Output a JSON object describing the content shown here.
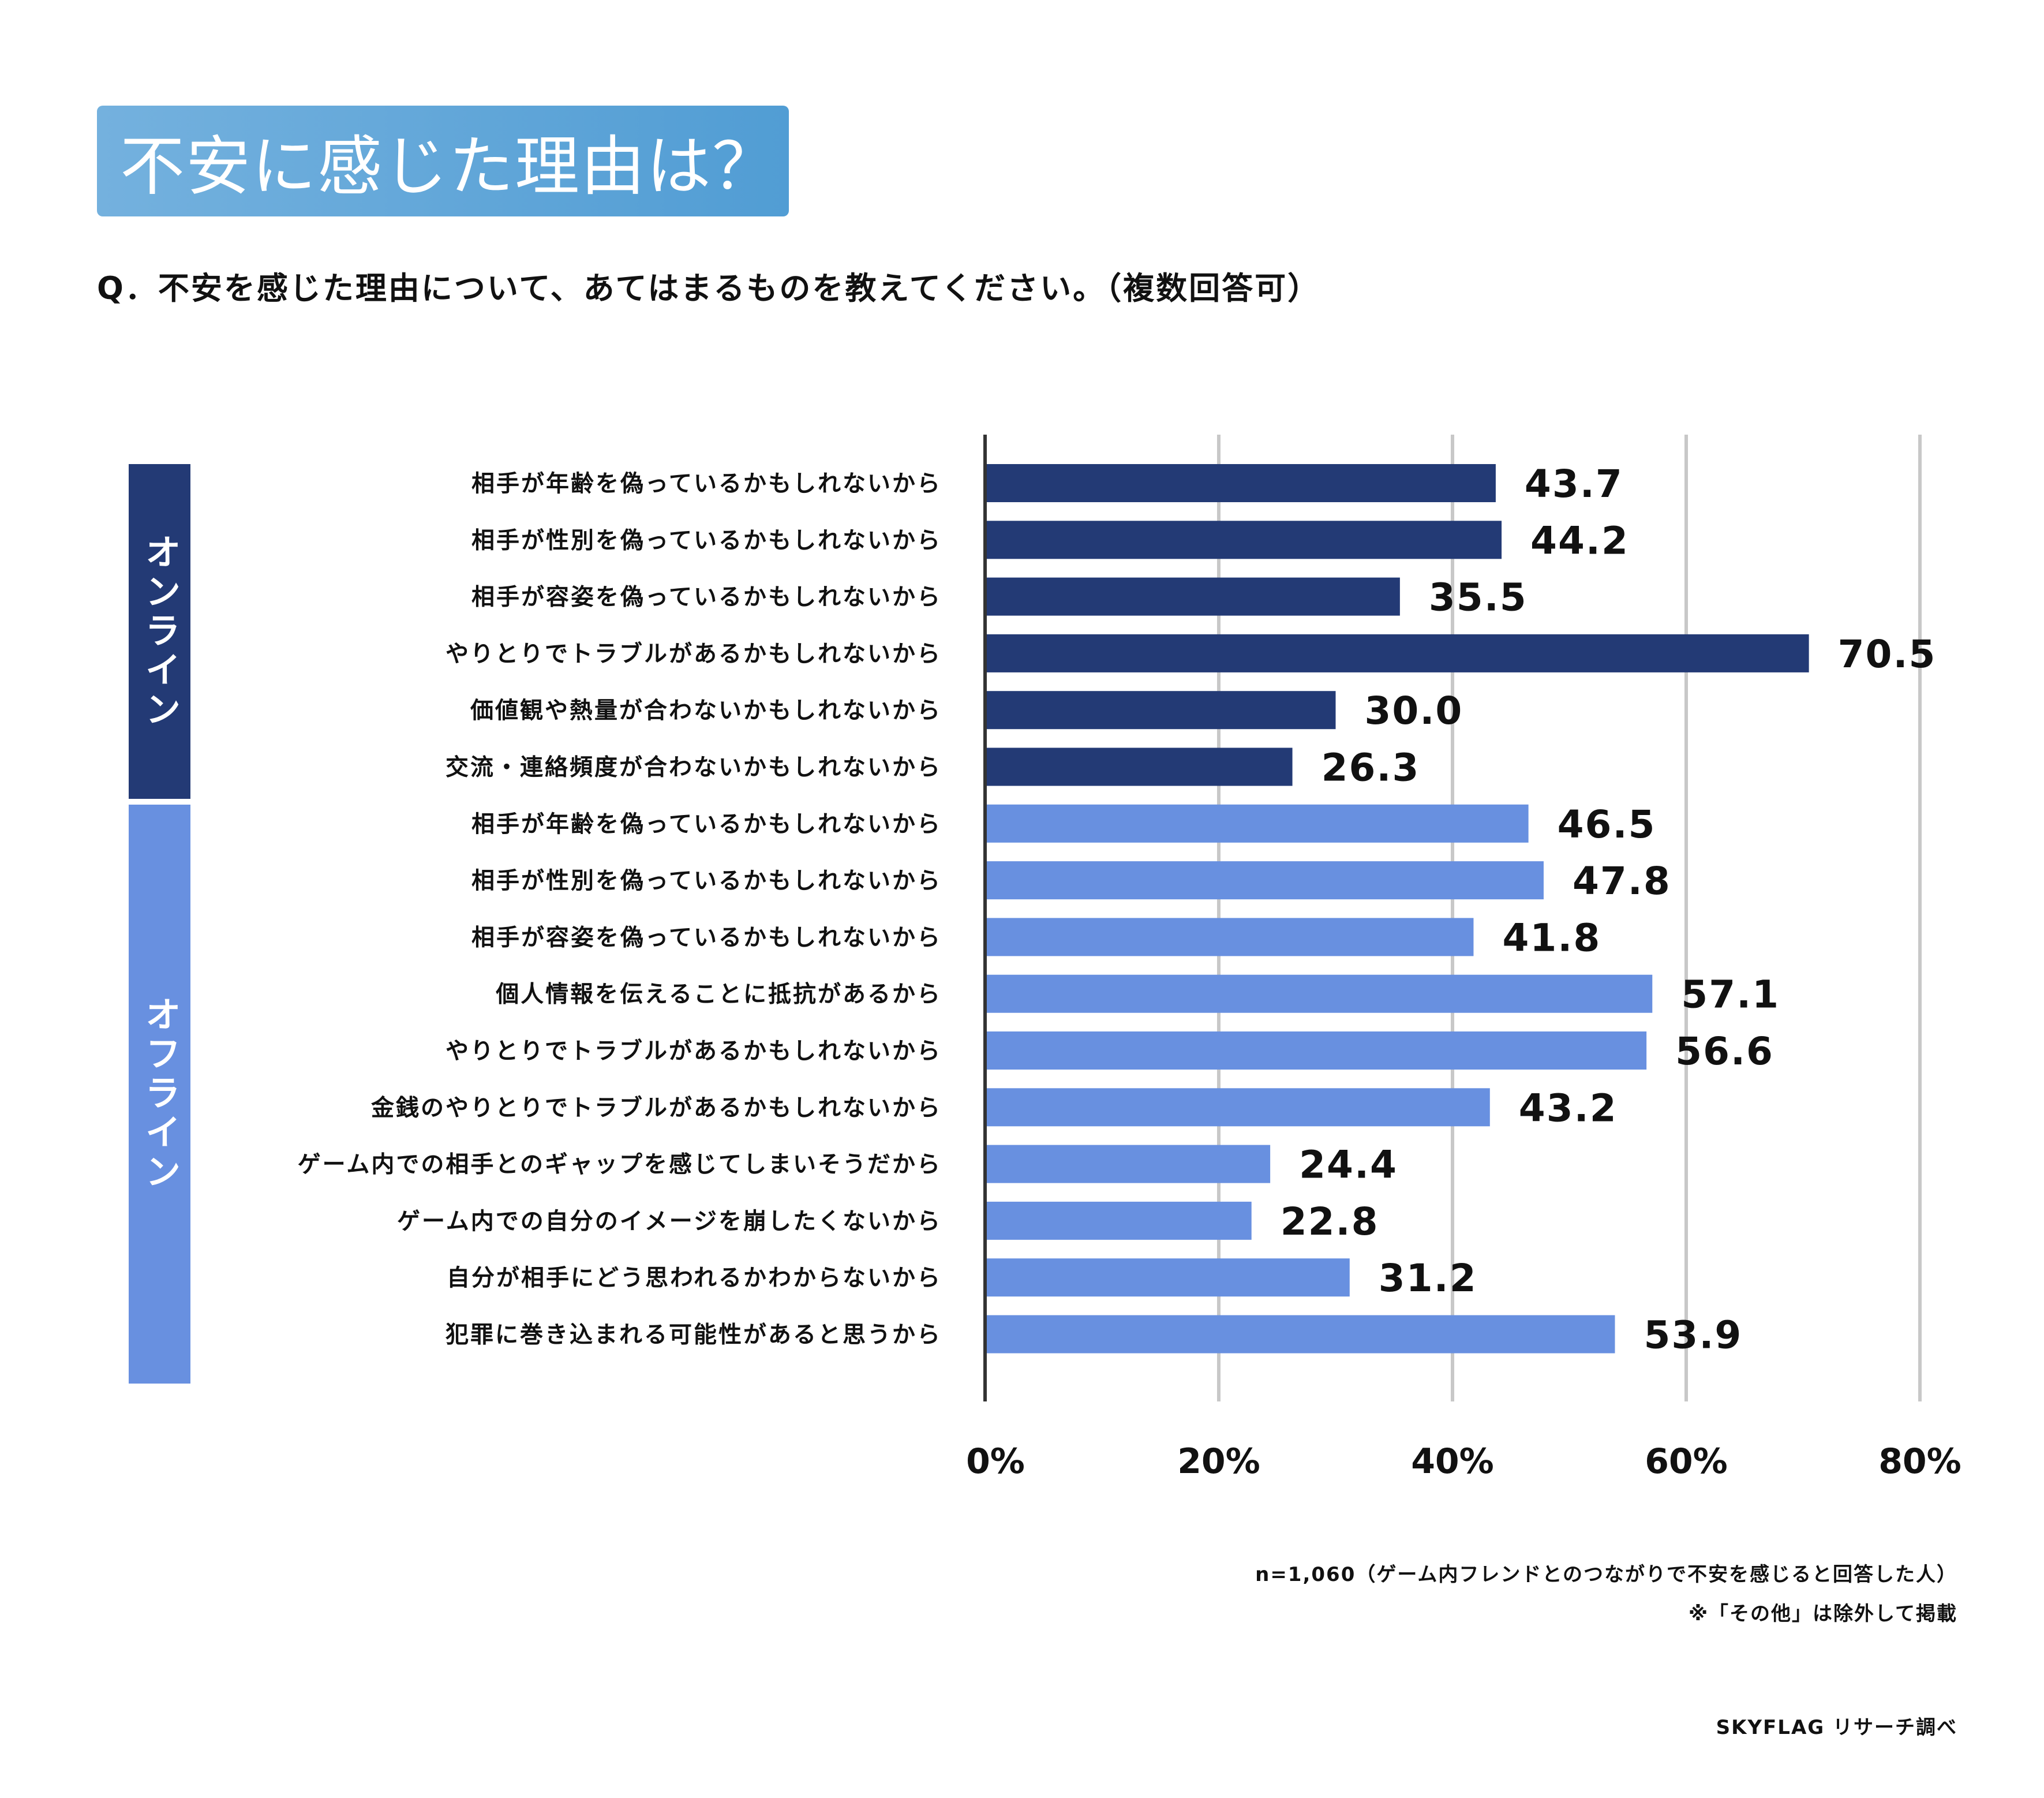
{
  "header": {
    "title": "不安に感じた理由は？",
    "question": "Q．不安を感じた理由について、あてはまるものを教えてください。（複数回答可）"
  },
  "groups": [
    {
      "name": "オンライン",
      "color": "#233a75",
      "count": 6
    },
    {
      "name": "オフライン",
      "color": "#6890e0",
      "count": 10
    }
  ],
  "chart_data": {
    "type": "bar",
    "orientation": "horizontal",
    "title": "不安に感じた理由は？",
    "xlabel": "",
    "ylabel": "",
    "xlim": [
      0,
      80
    ],
    "x_ticks": [
      "0%",
      "20%",
      "40%",
      "60%",
      "80%"
    ],
    "x_tick_values": [
      0,
      20,
      40,
      60,
      80
    ],
    "grid": true,
    "legend": "none",
    "categories": [
      "相手が年齢を偽っているかもしれないから",
      "相手が性別を偽っているかもしれないから",
      "相手が容姿を偽っているかもしれないから",
      "やりとりでトラブルがあるかもしれないから",
      "価値観や熱量が合わないかもしれないから",
      "交流・連絡頻度が合わないかもしれないから",
      "相手が年齢を偽っているかもしれないから",
      "相手が性別を偽っているかもしれないから",
      "相手が容姿を偽っているかもしれないから",
      "個人情報を伝えることに抵抗があるから",
      "やりとりでトラブルがあるかもしれないから",
      "金銭のやりとりでトラブルがあるかもしれないから",
      "ゲーム内での相手とのギャップを感じてしまいそうだから",
      "ゲーム内での自分のイメージを崩したくないから",
      "自分が相手にどう思われるかわからないから",
      "犯罪に巻き込まれる可能性があると思うから"
    ],
    "values": [
      43.7,
      44.2,
      35.5,
      70.5,
      30.0,
      26.3,
      46.5,
      47.8,
      41.8,
      57.1,
      56.6,
      43.2,
      24.4,
      22.8,
      31.2,
      53.9
    ],
    "value_labels": [
      "43.7",
      "44.2",
      "35.5",
      "70.5",
      "30.0",
      "26.3",
      "46.5",
      "47.8",
      "41.8",
      "57.1",
      "56.6",
      "43.2",
      "24.4",
      "22.8",
      "31.2",
      "53.9"
    ],
    "groups": [
      "オンライン",
      "オンライン",
      "オンライン",
      "オンライン",
      "オンライン",
      "オンライン",
      "オフライン",
      "オフライン",
      "オフライン",
      "オフライン",
      "オフライン",
      "オフライン",
      "オフライン",
      "オフライン",
      "オフライン",
      "オフライン"
    ],
    "series_colors": {
      "オンライン": "#233a75",
      "オフライン": "#6890e0"
    }
  },
  "footer": {
    "sample_note": "n=1,060（ゲーム内フレンドとのつながりで不安を感じると回答した人）",
    "exclusion_note": "※「その他」は除外して掲載",
    "source": "SKYFLAG リサーチ調べ"
  }
}
